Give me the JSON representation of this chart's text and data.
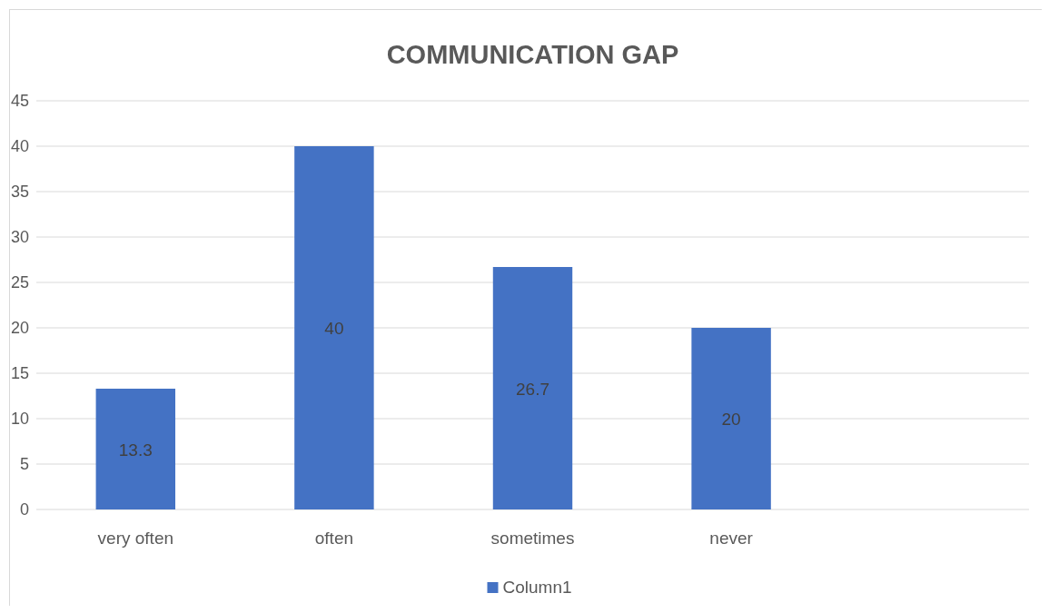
{
  "chart_data": {
    "type": "bar",
    "title": "COMMUNICATION GAP",
    "categories": [
      "very often",
      "often",
      "sometimes",
      "never",
      null
    ],
    "series": [
      {
        "name": "Column1",
        "color": "#4472c4",
        "values": [
          13.3,
          40,
          26.7,
          20,
          null
        ]
      }
    ],
    "ylim": [
      0,
      45
    ],
    "yticks": [
      0,
      5,
      10,
      15,
      20,
      25,
      30,
      35,
      40,
      45
    ],
    "grid": "y",
    "legend": "bottom",
    "data_labels": true
  }
}
